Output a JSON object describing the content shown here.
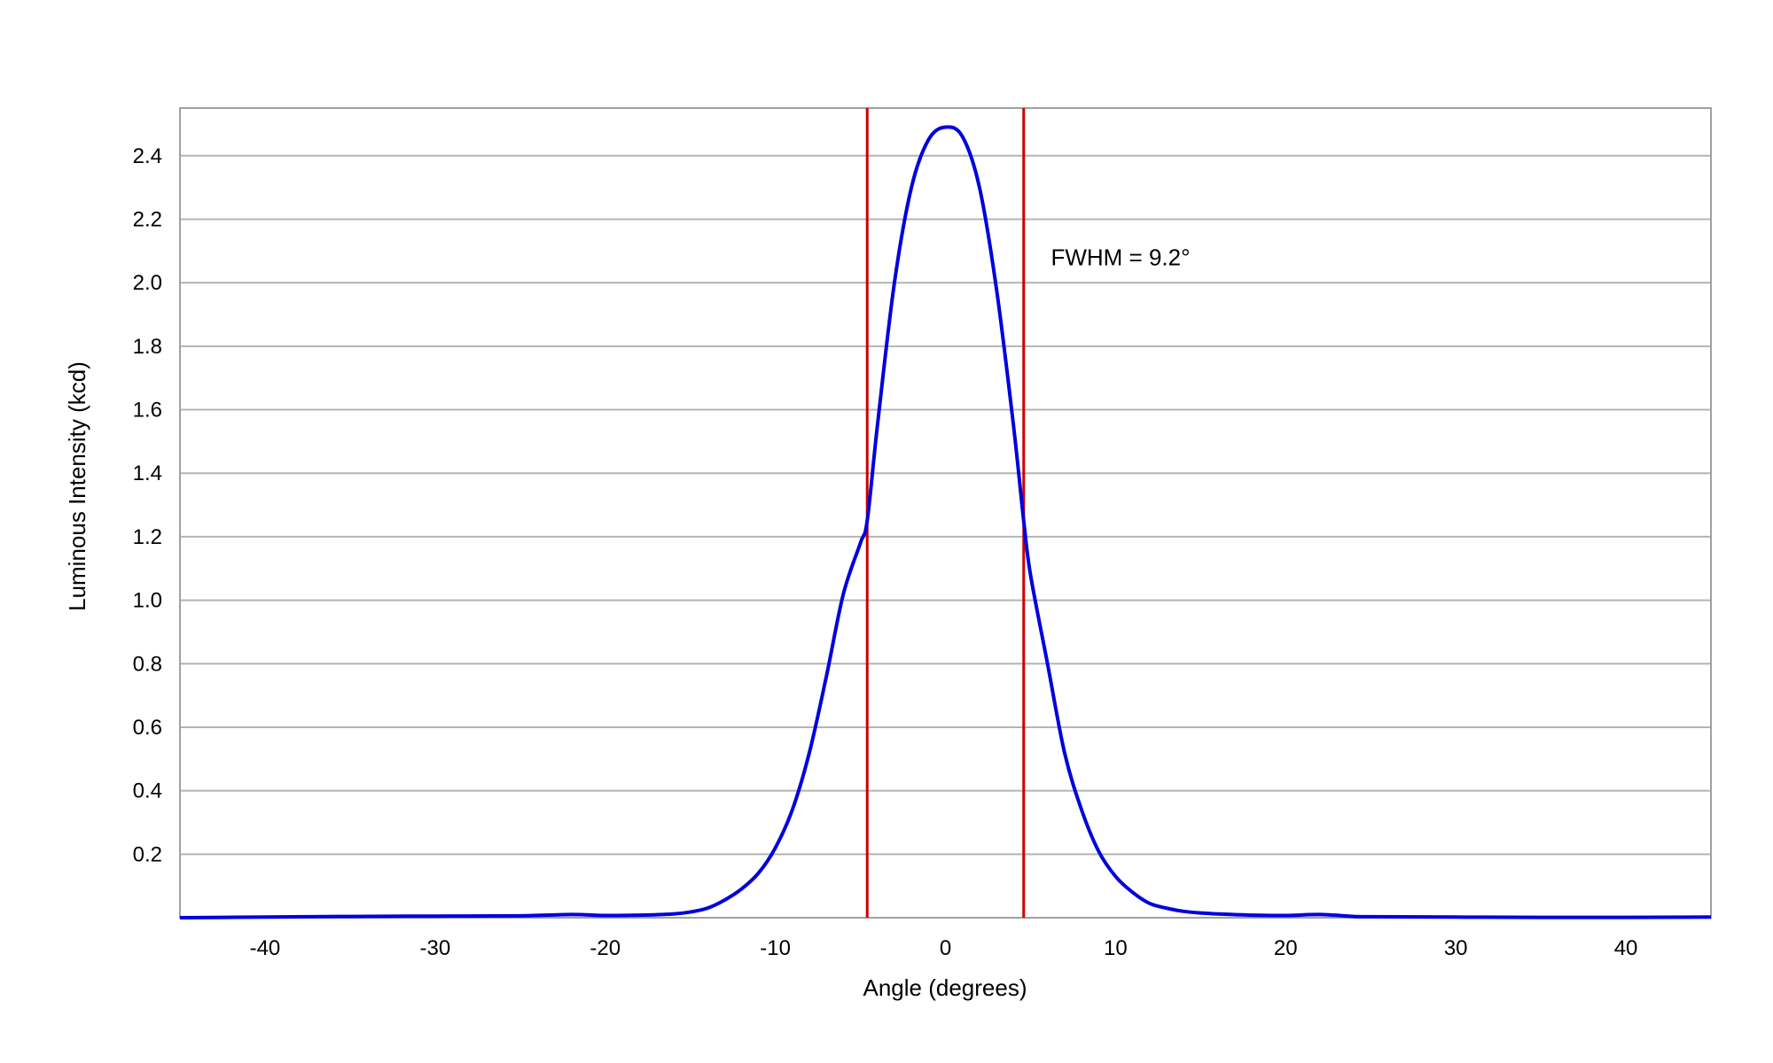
{
  "chart_data": {
    "type": "line",
    "title": "",
    "xlabel": "Angle (degrees)",
    "ylabel": "Luminous Intensity (kcd)",
    "xlim": [
      -45,
      45
    ],
    "ylim": [
      0,
      2.55
    ],
    "grid": true,
    "x_ticks": [
      -40,
      -30,
      -20,
      -10,
      0,
      10,
      20,
      30,
      40
    ],
    "x_tick_labels": [
      "-40",
      "-30",
      "-20",
      "-10",
      "0",
      "10",
      "20",
      "30",
      "40"
    ],
    "y_ticks": [
      0.2,
      0.4,
      0.6,
      0.8,
      1.0,
      1.2,
      1.4,
      1.6,
      1.8,
      2.0,
      2.2,
      2.4
    ],
    "y_tick_labels": [
      "0.2",
      "0.4",
      "0.6",
      "0.8",
      "1.0",
      "1.2",
      "1.4",
      "1.6",
      "1.8",
      "2.0",
      "2.2",
      "2.4"
    ],
    "series": [
      {
        "color": "#0000dd",
        "x": [
          -45,
          -40,
          -35,
          -30,
          -25,
          -22,
          -20,
          -18,
          -16,
          -15,
          -14,
          -13,
          -12,
          -11,
          -10,
          -9,
          -8,
          -7,
          -6,
          -5,
          -4.6,
          -4,
          -3,
          -2,
          -1,
          0,
          1,
          2,
          3,
          4,
          4.6,
          5,
          6,
          7,
          8,
          9,
          10,
          11,
          12,
          13,
          14,
          15,
          16,
          18,
          20,
          22,
          24,
          25,
          30,
          35,
          40,
          45
        ],
        "y": [
          0.0,
          0.002,
          0.004,
          0.005,
          0.006,
          0.01,
          0.007,
          0.008,
          0.012,
          0.018,
          0.03,
          0.055,
          0.09,
          0.14,
          0.22,
          0.34,
          0.52,
          0.76,
          1.02,
          1.18,
          1.25,
          1.55,
          2.0,
          2.3,
          2.45,
          2.49,
          2.46,
          2.3,
          1.98,
          1.55,
          1.25,
          1.08,
          0.8,
          0.52,
          0.34,
          0.21,
          0.13,
          0.08,
          0.045,
          0.03,
          0.02,
          0.015,
          0.012,
          0.008,
          0.007,
          0.01,
          0.004,
          0.003,
          0.002,
          0.001,
          0.001,
          0.002
        ]
      }
    ],
    "vertical_lines": [
      {
        "x": -4.6,
        "color": "#cc0000"
      },
      {
        "x": 4.6,
        "color": "#cc0000"
      }
    ],
    "annotations": [
      {
        "text": "FWHM = 9.2°",
        "x": 6.2,
        "y": 2.08
      }
    ],
    "colors": {
      "grid": "#b4b4b4",
      "frame": "#a0a0a0",
      "curve": "#0000dd",
      "marker_lines": "#cc0000"
    }
  }
}
